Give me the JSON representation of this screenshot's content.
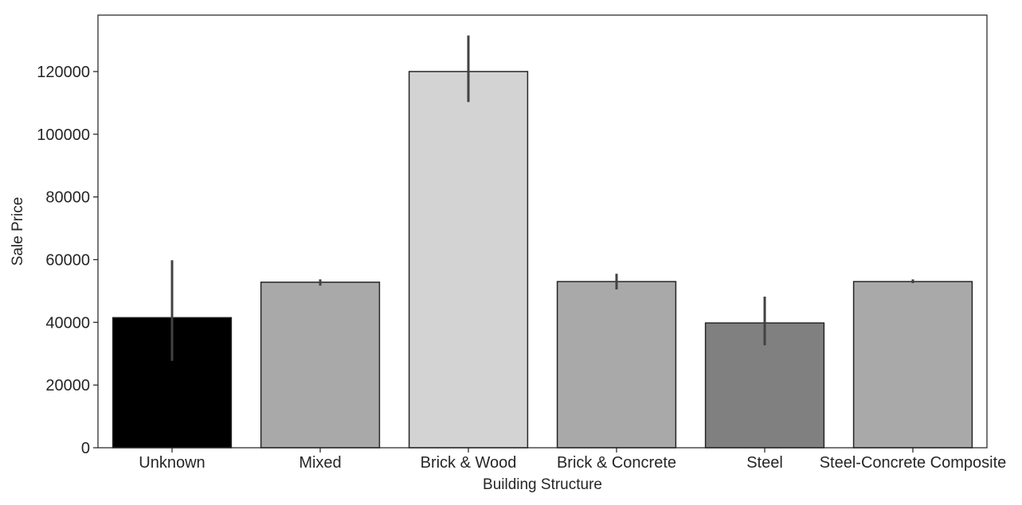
{
  "chart_data": {
    "type": "bar",
    "title": "",
    "xlabel": "Building Structure",
    "ylabel": "Sale Price",
    "ylim": [
      0,
      138000
    ],
    "yticks": [
      0,
      20000,
      40000,
      60000,
      80000,
      100000,
      120000
    ],
    "grid": false,
    "categories": [
      "Unknown",
      "Mixed",
      "Brick & Wood",
      "Brick & Concrete",
      "Steel",
      "Steel-Concrete Composite"
    ],
    "values": [
      41500,
      52800,
      120000,
      53000,
      39800,
      53000
    ],
    "error_bars": [
      {
        "low": 27700,
        "high": 59800
      },
      {
        "low": 51700,
        "high": 53700
      },
      {
        "low": 110300,
        "high": 131500
      },
      {
        "low": 50500,
        "high": 55500
      },
      {
        "low": 32700,
        "high": 48200
      },
      {
        "low": 52500,
        "high": 53700
      }
    ],
    "colors": [
      "#000000",
      "#a9a9a9",
      "#d3d3d3",
      "#a9a9a9",
      "#808080",
      "#a9a9a9"
    ],
    "edge_color": "#262626",
    "error_bar_color": "#424242"
  }
}
